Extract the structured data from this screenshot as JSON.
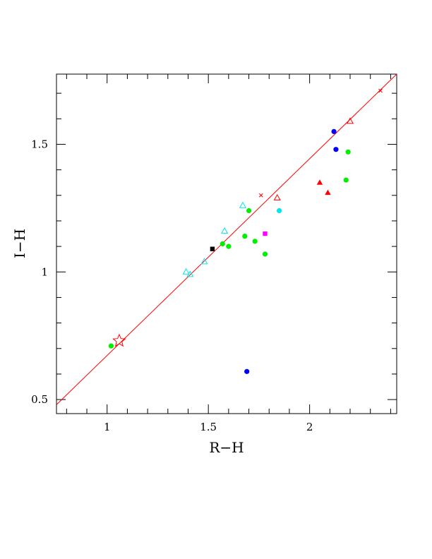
{
  "chart_data": {
    "type": "scatter",
    "xlabel": "R−H",
    "ylabel": "I−H",
    "xlim": [
      0.75,
      2.43
    ],
    "ylim": [
      0.445,
      1.775
    ],
    "x_major_ticks": [
      1,
      1.5,
      2
    ],
    "x_tick_labels": [
      "1",
      "1.5",
      "2"
    ],
    "y_major_ticks": [
      0.5,
      1,
      1.5
    ],
    "y_tick_labels": [
      "0.5",
      "1",
      "1.5"
    ],
    "x_minor_step": 0.1,
    "y_minor_step": 0.1,
    "grid": false,
    "reference_line": {
      "color": "#ff0000",
      "x": [
        0.75,
        2.43
      ],
      "y": [
        0.48,
        1.775
      ]
    },
    "series": [
      {
        "marker": "filled-circle",
        "color": "#00ee00",
        "points": [
          [
            1.02,
            0.71
          ],
          [
            1.57,
            1.11
          ],
          [
            1.6,
            1.1
          ],
          [
            1.68,
            1.14
          ],
          [
            1.7,
            1.24
          ],
          [
            1.73,
            1.12
          ],
          [
            1.78,
            1.07
          ],
          [
            2.18,
            1.36
          ],
          [
            2.19,
            1.47
          ]
        ]
      },
      {
        "marker": "filled-circle",
        "color": "#0000ff",
        "points": [
          [
            1.69,
            0.61
          ],
          [
            2.12,
            1.55
          ],
          [
            2.13,
            1.48
          ]
        ]
      },
      {
        "marker": "filled-circle",
        "color": "#00e5ee",
        "points": [
          [
            1.85,
            1.24
          ]
        ]
      },
      {
        "marker": "open-triangle",
        "color": "#00e5ee",
        "points": [
          [
            1.39,
            1.0
          ],
          [
            1.41,
            0.99
          ],
          [
            1.48,
            1.04
          ],
          [
            1.58,
            1.16
          ],
          [
            1.67,
            1.26
          ]
        ]
      },
      {
        "marker": "open-triangle",
        "color": "#ff0000",
        "points": [
          [
            1.84,
            1.29
          ],
          [
            2.2,
            1.59
          ]
        ]
      },
      {
        "marker": "filled-triangle",
        "color": "#ff0000",
        "points": [
          [
            2.05,
            1.35
          ],
          [
            2.09,
            1.31
          ]
        ]
      },
      {
        "marker": "filled-square",
        "color": "#000000",
        "points": [
          [
            1.52,
            1.09
          ]
        ]
      },
      {
        "marker": "filled-square",
        "color": "#ff00ff",
        "points": [
          [
            1.78,
            1.15
          ]
        ]
      },
      {
        "marker": "cross",
        "color": "#ff0000",
        "points": [
          [
            1.76,
            1.3
          ],
          [
            2.35,
            1.71
          ]
        ]
      },
      {
        "marker": "open-star",
        "color": "#ff0000",
        "points": [
          [
            1.06,
            0.73
          ]
        ]
      }
    ]
  }
}
